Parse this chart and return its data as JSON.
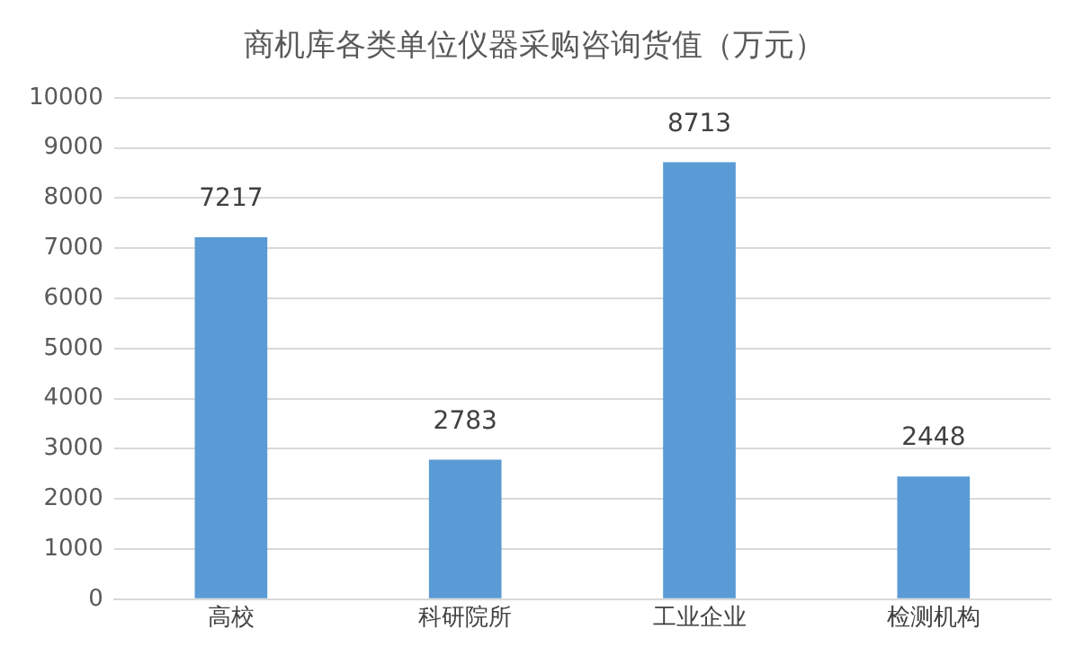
{
  "chart_data": {
    "type": "bar",
    "title": "商机库各类单位仪器采购咨询货值（万元）",
    "categories": [
      "高校",
      "科研院所",
      "工业企业",
      "检测机构"
    ],
    "values": [
      7217,
      2783,
      8713,
      2448
    ],
    "color": "#5b9bd5",
    "ylim": [
      0,
      10000
    ],
    "yticks": [
      0,
      1000,
      2000,
      3000,
      4000,
      5000,
      6000,
      7000,
      8000,
      9000,
      10000
    ],
    "grid": "y",
    "data_labels": true
  }
}
